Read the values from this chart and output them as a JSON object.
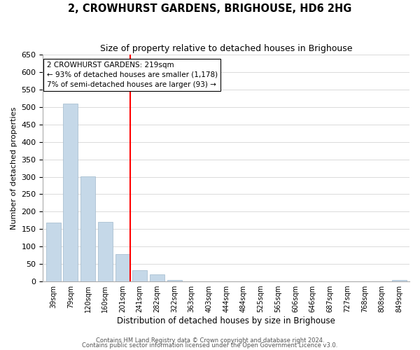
{
  "title": "2, CROWHURST GARDENS, BRIGHOUSE, HD6 2HG",
  "subtitle": "Size of property relative to detached houses in Brighouse",
  "xlabel": "Distribution of detached houses by size in Brighouse",
  "ylabel": "Number of detached properties",
  "bin_labels": [
    "39sqm",
    "79sqm",
    "120sqm",
    "160sqm",
    "201sqm",
    "241sqm",
    "282sqm",
    "322sqm",
    "363sqm",
    "403sqm",
    "444sqm",
    "484sqm",
    "525sqm",
    "565sqm",
    "606sqm",
    "646sqm",
    "687sqm",
    "727sqm",
    "768sqm",
    "808sqm",
    "849sqm"
  ],
  "bar_heights": [
    168,
    510,
    302,
    170,
    79,
    33,
    21,
    5,
    0,
    0,
    0,
    0,
    0,
    0,
    0,
    0,
    0,
    0,
    0,
    0,
    5
  ],
  "bar_color": "#c5d8e8",
  "bar_edge_color": "#a0b8cc",
  "vline_x": 4.45,
  "vline_label": "2 CROWHURST GARDENS: 219sqm",
  "annotation_line1": "← 93% of detached houses are smaller (1,178)",
  "annotation_line2": "7% of semi-detached houses are larger (93) →",
  "ylim": [
    0,
    650
  ],
  "yticks": [
    0,
    50,
    100,
    150,
    200,
    250,
    300,
    350,
    400,
    450,
    500,
    550,
    600,
    650
  ],
  "footnote1": "Contains HM Land Registry data © Crown copyright and database right 2024.",
  "footnote2": "Contains public sector information licensed under the Open Government Licence v3.0.",
  "background_color": "#ffffff",
  "grid_color": "#cccccc"
}
